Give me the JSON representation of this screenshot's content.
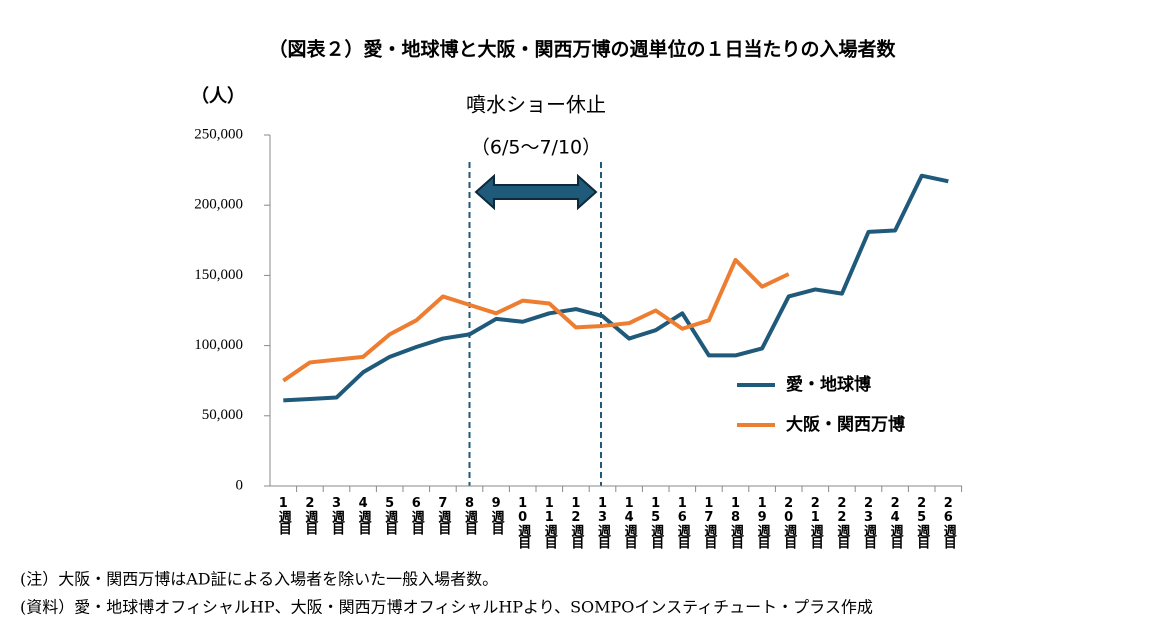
{
  "chart_data": {
    "type": "line",
    "title": "（図表２）愛・地球博と大阪・関西万博の週単位の１日当たりの入場者数",
    "y_label": "（人）",
    "annotation": "噴水ショー休止",
    "annotation_period": "（6/5〜7/10）",
    "categories": [
      "1週目",
      "2週目",
      "3週目",
      "4週目",
      "5週目",
      "6週目",
      "7週目",
      "8週目",
      "9週目",
      "10週目",
      "11週目",
      "12週目",
      "13週目",
      "14週目",
      "15週目",
      "16週目",
      "17週目",
      "18週目",
      "19週目",
      "20週目",
      "21週目",
      "22週目",
      "23週目",
      "24週目",
      "25週目",
      "26週目"
    ],
    "series": [
      {
        "name": "愛・地球博",
        "color": "#1f5a7a",
        "values": [
          61000,
          62000,
          63000,
          81000,
          92000,
          99000,
          105000,
          108000,
          119000,
          117000,
          123000,
          126000,
          121000,
          105000,
          111000,
          123000,
          93000,
          93000,
          98000,
          135000,
          140000,
          137000,
          181000,
          182000,
          221000,
          217000
        ]
      },
      {
        "name": "大阪・関西万博",
        "color": "#ed7d31",
        "values": [
          75000,
          88000,
          90000,
          92000,
          108000,
          118000,
          135000,
          129000,
          123000,
          132000,
          130000,
          113000,
          114000,
          116000,
          125000,
          112000,
          118000,
          161000,
          142000,
          151000,
          null,
          null,
          null,
          null,
          null,
          null
        ]
      }
    ],
    "ylim": [
      0,
      250000
    ],
    "yticks": [
      0,
      {
        "value": 50000,
        "label": "50,000"
      },
      {
        "value": 100000,
        "label": "100,000"
      },
      {
        "value": 150000,
        "label": "150,000"
      },
      {
        "value": 200000,
        "label": "200,000"
      },
      {
        "value": 250000,
        "label": "250,000"
      }
    ],
    "grid": false,
    "legend": "right",
    "notes": [
      "(注）大阪・関西万博はAD証による入場者を除いた一般入場者数。",
      "(資料）愛・地球博オフィシャルHP、大阪・関西万博オフィシャルHPより、SOMPOインスティチュート・プラス作成"
    ]
  }
}
